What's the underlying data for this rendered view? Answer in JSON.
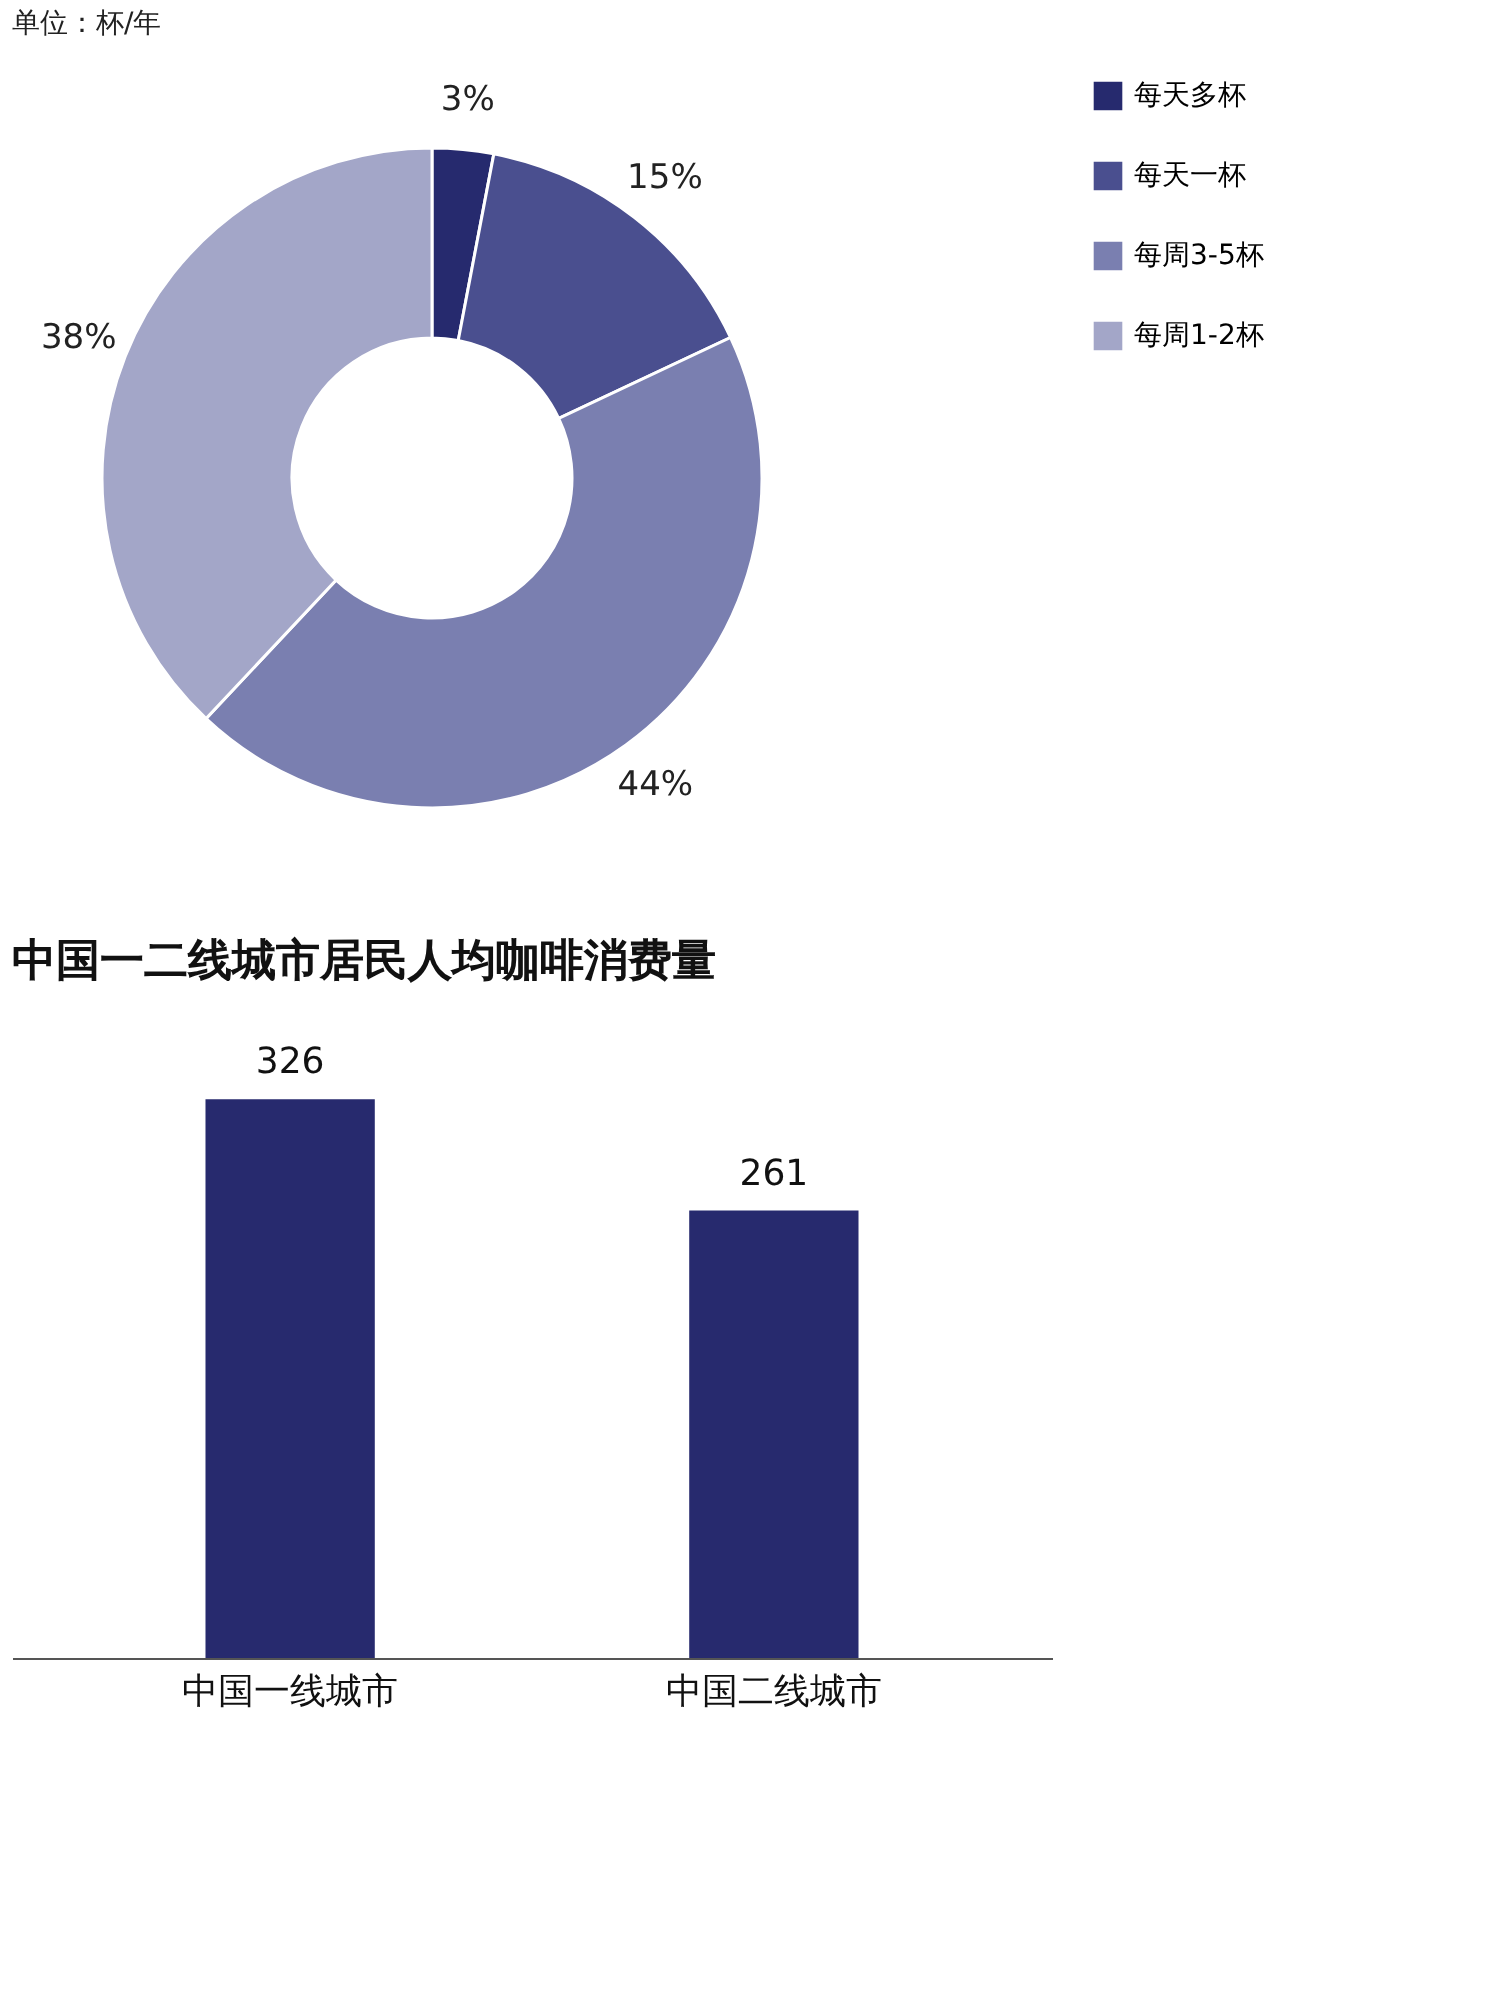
{
  "chart_data": [
    {
      "type": "donut",
      "annotations": [
        "单位：杯/年"
      ],
      "categories": [
        "每天多杯",
        "每天一杯",
        "每周3-5杯",
        "每周1-2杯"
      ],
      "values": [
        3,
        15,
        44,
        38
      ],
      "colors": [
        "#262a6e",
        "#4a4f8f",
        "#7a7fb0",
        "#a3a6c8"
      ],
      "value_labels": [
        "3%",
        "15%",
        "44%",
        "38%"
      ],
      "legend": "right"
    },
    {
      "type": "bar",
      "title": "中国一二线城市居民人均咖啡消费量",
      "categories": [
        "中国一线城市",
        "中国二线城市"
      ],
      "values": [
        326,
        261
      ],
      "color": "#272a6e",
      "data_labels": true,
      "tick_labels": "x"
    }
  ]
}
